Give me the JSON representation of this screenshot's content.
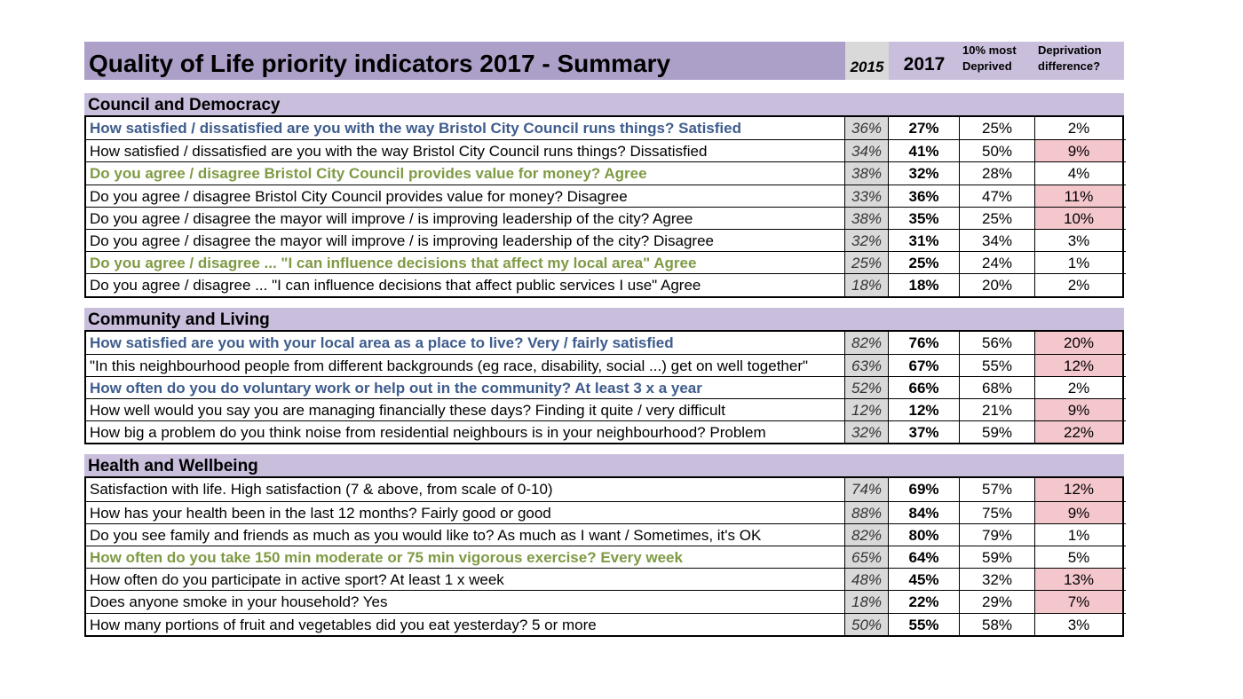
{
  "title": "Quality of Life priority indicators 2017 - Summary",
  "columns": {
    "y2015": "2015",
    "y2017": "2017",
    "deprived": "10% most Deprived",
    "diff": "Deprivation difference?"
  },
  "colors": {
    "title_bar": "#ada0c8",
    "section_bar": "#c9bfdd",
    "col_2015_bg": "#d9d9d9",
    "highlight": "#f4c7cc",
    "blue_text": "#3e5c8d",
    "green_text": "#7f9a44"
  },
  "sections": [
    {
      "name": "Council and Democracy",
      "rows": [
        {
          "label": "How satisfied / dissatisfied are you with the way Bristol City Council runs things? Satisfied",
          "style": "blue",
          "y2015": "36%",
          "y2017": "27%",
          "deprived": "25%",
          "diff": "2%",
          "highlight": false
        },
        {
          "label": "How satisfied / dissatisfied are you with the way Bristol City Council runs things? Dissatisfied",
          "style": "",
          "y2015": "34%",
          "y2017": "41%",
          "deprived": "50%",
          "diff": "9%",
          "highlight": true
        },
        {
          "label": "Do you agree / disagree Bristol City Council provides value for money? Agree",
          "style": "green",
          "y2015": "38%",
          "y2017": "32%",
          "deprived": "28%",
          "diff": "4%",
          "highlight": false
        },
        {
          "label": "Do you agree / disagree Bristol City Council provides value for money? Disagree",
          "style": "",
          "y2015": "33%",
          "y2017": "36%",
          "deprived": "47%",
          "diff": "11%",
          "highlight": true
        },
        {
          "label": "Do you agree / disagree the mayor will improve / is improving leadership of the city? Agree",
          "style": "",
          "y2015": "38%",
          "y2017": "35%",
          "deprived": "25%",
          "diff": "10%",
          "highlight": true
        },
        {
          "label": "Do you agree / disagree the mayor will improve / is improving leadership of the city? Disagree",
          "style": "",
          "y2015": "32%",
          "y2017": "31%",
          "deprived": "34%",
          "diff": "3%",
          "highlight": false
        },
        {
          "label": "Do you agree / disagree ... \"I can influence decisions that affect my local area\" Agree",
          "style": "green",
          "y2015": "25%",
          "y2017": "25%",
          "deprived": "24%",
          "diff": "1%",
          "highlight": false
        },
        {
          "label": "Do you agree / disagree ... \"I can influence decisions that affect public services I use\" Agree",
          "style": "",
          "y2015": "18%",
          "y2017": "18%",
          "deprived": "20%",
          "diff": "2%",
          "highlight": false
        }
      ]
    },
    {
      "name": "Community and Living",
      "rows": [
        {
          "label": "How satisfied are you with your local area as a place to live? Very / fairly satisfied",
          "style": "blue",
          "y2015": "82%",
          "y2017": "76%",
          "deprived": "56%",
          "diff": "20%",
          "highlight": true
        },
        {
          "label": "\"In this neighbourhood people from different backgrounds (eg race, disability, social ...) get on well together\"",
          "style": "",
          "y2015": "63%",
          "y2017": "67%",
          "deprived": "55%",
          "diff": "12%",
          "highlight": true
        },
        {
          "label": "How often do you do voluntary work or help out in the community? At least 3 x a year",
          "style": "blue",
          "y2015": "52%",
          "y2017": "66%",
          "deprived": "68%",
          "diff": "2%",
          "highlight": false
        },
        {
          "label": "How well would you say you are managing financially these days? Finding it quite / very difficult",
          "style": "",
          "y2015": "12%",
          "y2017": "12%",
          "deprived": "21%",
          "diff": "9%",
          "highlight": true
        },
        {
          "label": "How big a problem do you think noise from residential neighbours is in your neighbourhood? Problem",
          "style": "",
          "y2015": "32%",
          "y2017": "37%",
          "deprived": "59%",
          "diff": "22%",
          "highlight": true
        }
      ]
    },
    {
      "name": "Health and Wellbeing",
      "rows": [
        {
          "label": "Satisfaction with life.  High satisfaction (7 & above, from scale of 0-10)",
          "style": "",
          "y2015": "74%",
          "y2017": "69%",
          "deprived": "57%",
          "diff": "12%",
          "highlight": true
        },
        {
          "label": "How has your health been in the last 12 months? Fairly good or good",
          "style": "",
          "y2015": "88%",
          "y2017": "84%",
          "deprived": "75%",
          "diff": "9%",
          "highlight": true
        },
        {
          "label": "Do you see family and friends as much as you would like to? As much as I want / Sometimes, it's OK",
          "style": "",
          "y2015": "82%",
          "y2017": "80%",
          "deprived": "79%",
          "diff": "1%",
          "highlight": false
        },
        {
          "label": "How often do you take 150 min moderate or 75 min vigorous exercise? Every week",
          "style": "green",
          "y2015": "65%",
          "y2017": "64%",
          "deprived": "59%",
          "diff": "5%",
          "highlight": false
        },
        {
          "label": "How often do you participate in active sport? At least 1 x week",
          "style": "",
          "y2015": "48%",
          "y2017": "45%",
          "deprived": "32%",
          "diff": "13%",
          "highlight": true
        },
        {
          "label": "Does anyone smoke in your household? Yes",
          "style": "",
          "y2015": "18%",
          "y2017": "22%",
          "deprived": "29%",
          "diff": "7%",
          "highlight": true
        },
        {
          "label": "How many portions of fruit and vegetables did you eat yesterday? 5 or more",
          "style": "",
          "y2015": "50%",
          "y2017": "55%",
          "deprived": "58%",
          "diff": "3%",
          "highlight": false
        }
      ]
    }
  ]
}
